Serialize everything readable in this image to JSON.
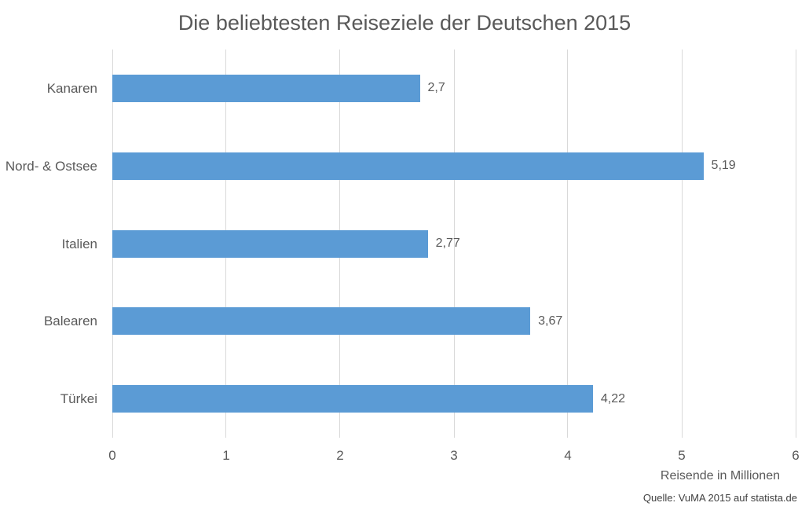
{
  "chart_data": {
    "type": "bar",
    "orientation": "horizontal",
    "title": "Die beliebtesten Reiseziele der Deutschen 2015",
    "categories": [
      "Kanaren",
      "Nord- & Ostsee",
      "Italien",
      "Balearen",
      "Türkei"
    ],
    "values": [
      2.7,
      5.19,
      2.77,
      3.67,
      4.22
    ],
    "value_labels": [
      "2,7",
      "5,19",
      "2,77",
      "3,67",
      "4,22"
    ],
    "xlabel": "Reisende in Millionen",
    "xlim": [
      0,
      6
    ],
    "xticks": [
      "0",
      "1",
      "2",
      "3",
      "4",
      "5",
      "6"
    ],
    "grid": true,
    "legend": false,
    "source": "Quelle: VuMA 2015 auf statista.de",
    "colors": {
      "bar": "#5B9BD5",
      "gridline": "#D9D9D9",
      "axis_text": "#595959",
      "title_text": "#595959",
      "source_text": "#404040",
      "background": "#FFFFFF"
    }
  }
}
